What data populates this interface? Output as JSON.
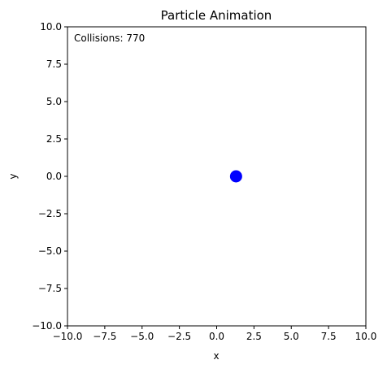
{
  "chart_data": {
    "type": "scatter",
    "title": "Particle Animation",
    "xlabel": "x",
    "ylabel": "y",
    "xlim": [
      -10,
      10
    ],
    "ylim": [
      -10,
      10
    ],
    "xticks": [
      -10,
      -7.5,
      -5,
      -2.5,
      0,
      2.5,
      5,
      7.5,
      10
    ],
    "yticks": [
      -10,
      -7.5,
      -5,
      -2.5,
      0,
      2.5,
      5,
      7.5,
      10
    ],
    "xtick_labels": [
      "−10.0",
      "−7.5",
      "−5.0",
      "−2.5",
      "0.0",
      "2.5",
      "5.0",
      "7.5",
      "10.0"
    ],
    "ytick_labels": [
      "−10.0",
      "−7.5",
      "−5.0",
      "−2.5",
      "0.0",
      "2.5",
      "5.0",
      "7.5",
      "10.0"
    ],
    "grid": false,
    "series": [
      {
        "points": [
          {
            "x": 1.3,
            "y": 0.0
          }
        ],
        "color": "#0000ff"
      }
    ],
    "annotation": {
      "text": "Collisions: 770"
    }
  }
}
